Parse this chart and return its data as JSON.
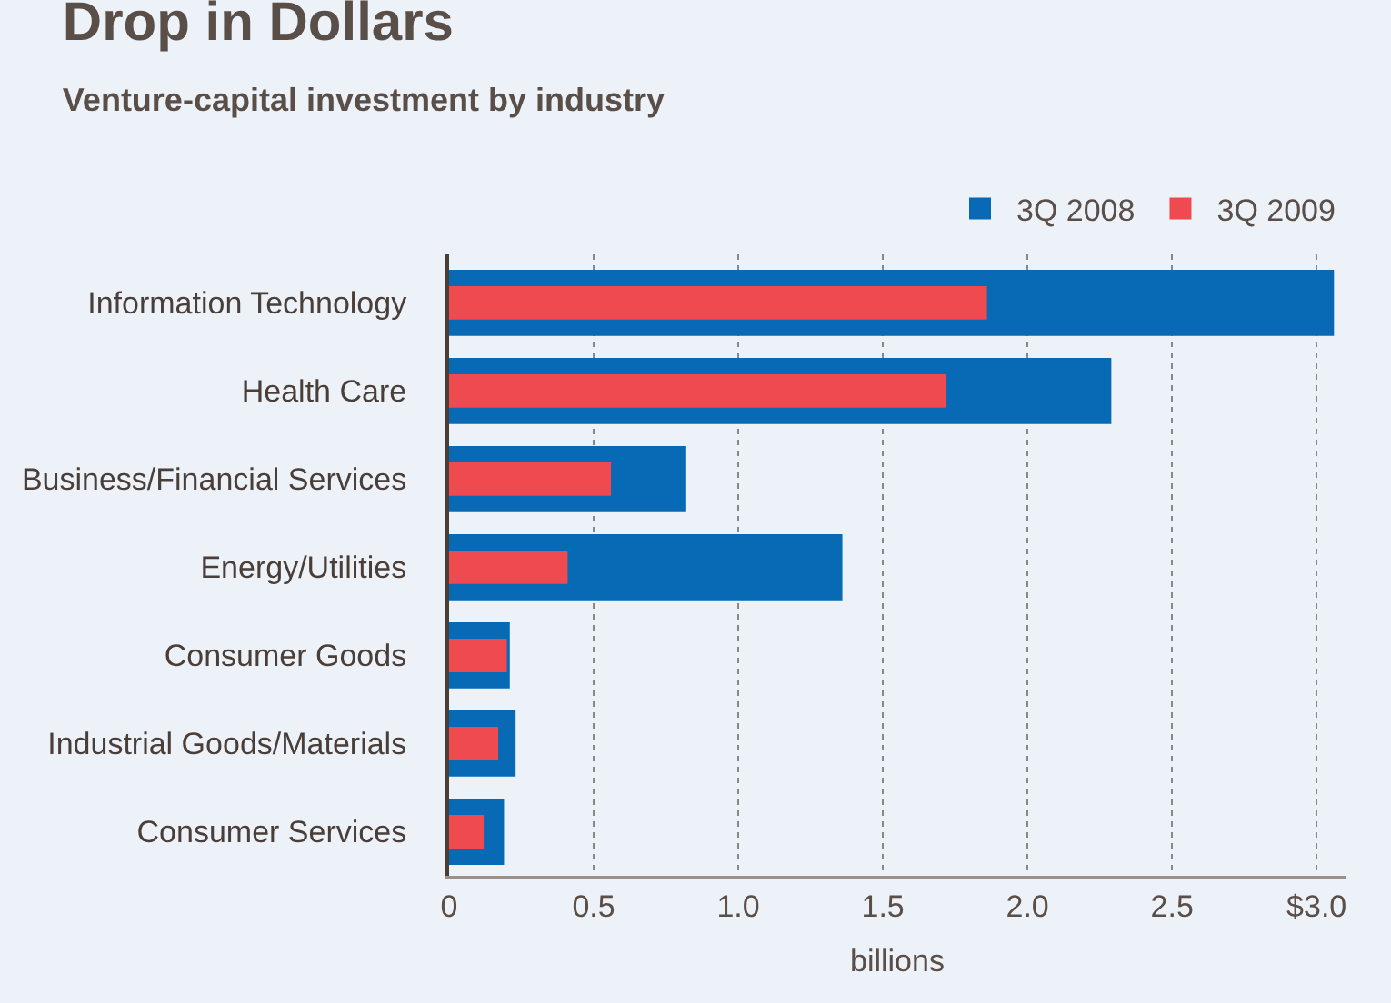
{
  "chart_data": {
    "type": "bar",
    "orientation": "horizontal",
    "title": "Drop in Dollars",
    "subtitle": "Venture-capital investment by industry",
    "xlabel": "billions",
    "categories": [
      "Information Technology",
      "Health Care",
      "Business/Financial Services",
      "Energy/Utilities",
      "Consumer Goods",
      "Industrial Goods/Materials",
      "Consumer Services"
    ],
    "series": [
      {
        "name": "3Q 2008",
        "color": "#0869b4",
        "values": [
          3.06,
          2.29,
          0.82,
          1.36,
          0.21,
          0.23,
          0.19
        ]
      },
      {
        "name": "3Q 2009",
        "color": "#ee4a50",
        "values": [
          1.86,
          1.72,
          0.56,
          0.41,
          0.2,
          0.17,
          0.12
        ]
      }
    ],
    "xlim": [
      0,
      3.1
    ],
    "xticks": [
      0,
      0.5,
      {
        "value": 1,
        "label": "1.0"
      },
      1.5,
      {
        "value": 2,
        "label": "2.0"
      },
      2.5,
      {
        "value": 3,
        "label": "$3.0"
      }
    ],
    "grid": "x",
    "legend": "top right"
  }
}
